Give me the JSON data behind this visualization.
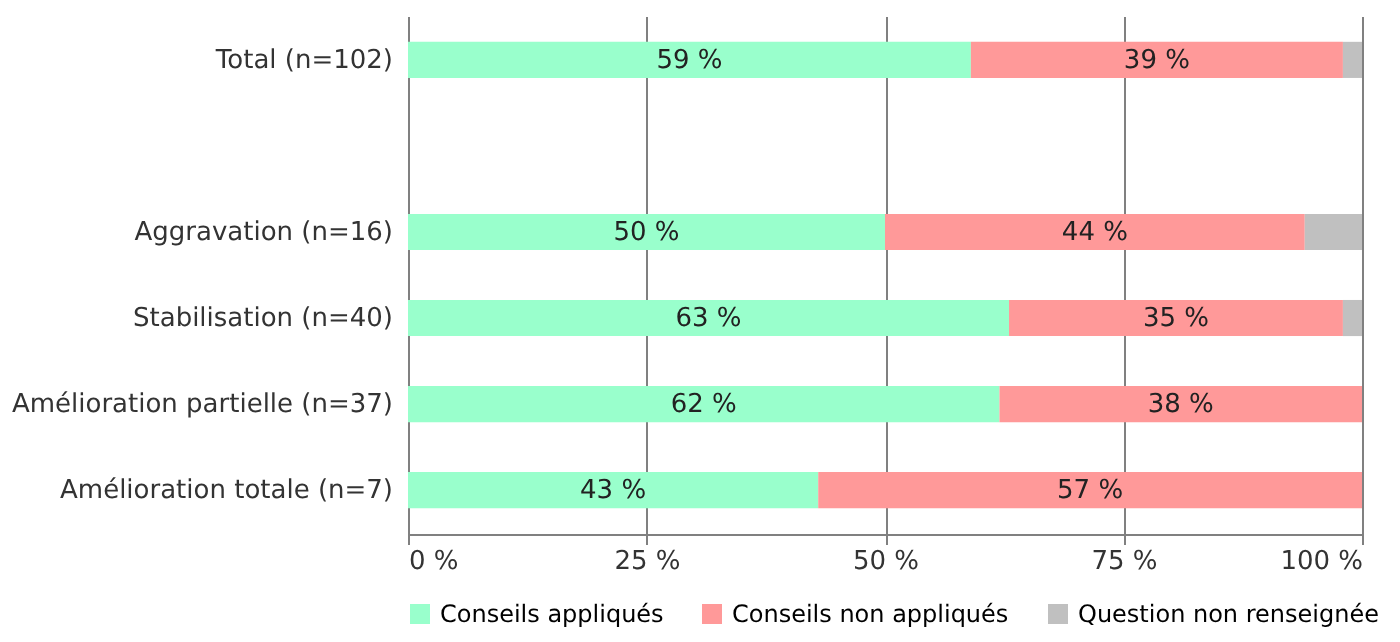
{
  "chart_data": {
    "type": "bar",
    "orientation": "horizontal",
    "stacked": true,
    "categories": [
      "Total (n=102)",
      null,
      "Aggravation (n=16)",
      "Stabilisation (n=40)",
      "Amélioration partielle (n=37)",
      "Amélioration totale (n=7)"
    ],
    "series": [
      {
        "name": "Conseils appliqués",
        "color": "#99ffcc",
        "values": [
          59,
          null,
          50,
          63,
          62,
          43
        ],
        "value_labels": [
          "59 %",
          null,
          "50 %",
          "63 %",
          "62 %",
          "43 %"
        ]
      },
      {
        "name": "Conseils non appliqués",
        "color": "#ff9999",
        "values": [
          39,
          null,
          44,
          35,
          38,
          57
        ],
        "value_labels": [
          "39 %",
          null,
          "44 %",
          "35 %",
          "38 %",
          "57 %"
        ]
      },
      {
        "name": "Question non renseignée",
        "color": "#c0c0c0",
        "values": [
          2,
          null,
          6,
          2,
          0,
          0
        ],
        "value_labels": [
          null,
          null,
          null,
          null,
          null,
          null
        ]
      }
    ],
    "xlim": [
      0,
      100
    ],
    "xticks": [
      {
        "value": 0,
        "label": "0 %"
      },
      {
        "value": 25,
        "label": "25 %"
      },
      {
        "value": 50,
        "label": "50 %"
      },
      {
        "value": 75,
        "label": "75 %"
      },
      {
        "value": 100,
        "label": "100 %"
      }
    ],
    "grid": "x",
    "legend": "bottom"
  }
}
